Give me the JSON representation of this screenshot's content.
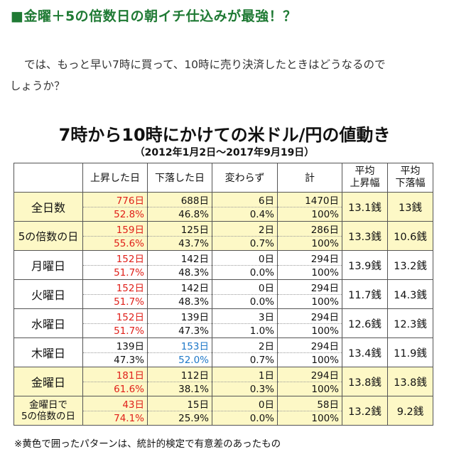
{
  "heading": "■金曜＋5の倍数日の朝イチ仕込みが最強！？",
  "paragraph": {
    "line1": "では、もっと早い7時に買って、10時に売り決済したときはどうなるので",
    "line2": "しょうか？"
  },
  "table": {
    "title": "7時から10時にかけての米ドル/円の値動き",
    "subtitle": "（2012年1月2日～2017年9月19日）",
    "headers": {
      "up": "上昇した日",
      "down": "下落した日",
      "flat": "変わらず",
      "total": "計",
      "avg_up_1": "平均",
      "avg_up_2": "上昇幅",
      "avg_down_1": "平均",
      "avg_down_2": "下落幅"
    },
    "rows": [
      {
        "label": "全日数",
        "up": "776日",
        "up_pct": "52.8%",
        "down": "688日",
        "down_pct": "46.8%",
        "flat": "6日",
        "flat_pct": "0.4%",
        "total": "1470日",
        "total_pct": "100%",
        "avg_up": "13.1銭",
        "avg_down": "13銭"
      },
      {
        "label": "5の倍数の日",
        "up": "159日",
        "up_pct": "55.6%",
        "down": "125日",
        "down_pct": "43.7%",
        "flat": "2日",
        "flat_pct": "0.7%",
        "total": "286日",
        "total_pct": "100%",
        "avg_up": "13.3銭",
        "avg_down": "10.6銭"
      },
      {
        "label": "月曜日",
        "up": "152日",
        "up_pct": "51.7%",
        "down": "142日",
        "down_pct": "48.3%",
        "flat": "0日",
        "flat_pct": "0.0%",
        "total": "294日",
        "total_pct": "100%",
        "avg_up": "13.9銭",
        "avg_down": "13.2銭"
      },
      {
        "label": "火曜日",
        "up": "152日",
        "up_pct": "51.7%",
        "down": "142日",
        "down_pct": "48.3%",
        "flat": "0日",
        "flat_pct": "0.0%",
        "total": "294日",
        "total_pct": "100%",
        "avg_up": "11.7銭",
        "avg_down": "14.3銭"
      },
      {
        "label": "水曜日",
        "up": "152日",
        "up_pct": "51.7%",
        "down": "139日",
        "down_pct": "47.3%",
        "flat": "3日",
        "flat_pct": "1.0%",
        "total": "294日",
        "total_pct": "100%",
        "avg_up": "12.6銭",
        "avg_down": "12.3銭"
      },
      {
        "label": "木曜日",
        "up": "139日",
        "up_pct": "47.3%",
        "down": "153日",
        "down_pct": "52.0%",
        "flat": "2日",
        "flat_pct": "0.7%",
        "total": "294日",
        "total_pct": "100%",
        "avg_up": "13.4銭",
        "avg_down": "11.9銭"
      },
      {
        "label": "金曜日",
        "up": "181日",
        "up_pct": "61.6%",
        "down": "112日",
        "down_pct": "38.1%",
        "flat": "1日",
        "flat_pct": "0.3%",
        "total": "294日",
        "total_pct": "100%",
        "avg_up": "13.8銭",
        "avg_down": "13.8銭"
      },
      {
        "label_1": "金曜日で",
        "label_2": "5の倍数の日",
        "up": "43日",
        "up_pct": "74.1%",
        "down": "15日",
        "down_pct": "25.9%",
        "flat": "0日",
        "flat_pct": "0.0%",
        "total": "58日",
        "total_pct": "100%",
        "avg_up": "13.2銭",
        "avg_down": "9.2銭"
      }
    ],
    "note": "※黄色で囲ったパターンは、統計的検定で有意差のあったもの"
  },
  "colors": {
    "heading": "#1f7a34",
    "highlight": "#fdf8c6",
    "up_emphasis": "#e0201a",
    "down_emphasis": "#1e78c8"
  }
}
